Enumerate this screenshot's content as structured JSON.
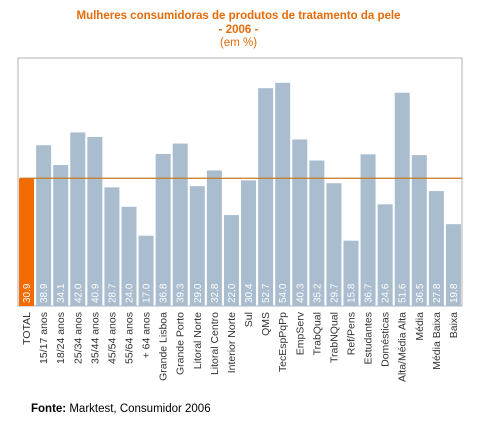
{
  "chart_data": {
    "type": "bar",
    "title": "Mulheres consumidoras de produtos de tratamento da pele",
    "subtitle": "- 2006 -",
    "unit_label": "(em %)",
    "categories": [
      "TOTAL",
      "15/17 anos",
      "18/24 anos",
      "25/34 anos",
      "35/44 anos",
      "45/54 anos",
      "55/64 anos",
      "+ 64 anos",
      "Grande Lisboa",
      "Grande Porto",
      "Litoral Norte",
      "Litoral Centro",
      "Interior Norte",
      "Sul",
      "QMS",
      "TecEspPqPp",
      "EmpServ",
      "TrabQual",
      "TrabNQual",
      "Ref/Pens",
      "Estudantes",
      "Domésticas",
      "Alta/Média Alta",
      "Média",
      "Média Baixa",
      "Baixa"
    ],
    "values": [
      30.9,
      38.9,
      34.1,
      42.0,
      40.9,
      28.7,
      24.0,
      17.0,
      36.8,
      39.3,
      29.0,
      32.8,
      22.0,
      30.4,
      52.7,
      54.0,
      40.3,
      35.2,
      29.7,
      15.8,
      36.7,
      24.6,
      51.6,
      36.5,
      27.8,
      19.8
    ],
    "value_labels": [
      "30.9",
      "38.9",
      "34.1",
      "42.0",
      "40.9",
      "28.7",
      "24.0",
      "17.0",
      "36.8",
      "39.3",
      "29.0",
      "32.8",
      "22.0",
      "30.4",
      "52.7",
      "54.0",
      "40.3",
      "35.2",
      "29.7",
      "15.8",
      "36.7",
      "24.6",
      "51.6",
      "36.5",
      "27.8",
      "19.8"
    ],
    "ylim": [
      0,
      60
    ],
    "reference_line": 30.9,
    "highlight_index": 0,
    "grid": false,
    "legend": "none",
    "colors": {
      "bar": "#a9bdcf",
      "highlight": "#f26a00",
      "reference_line": "#c8781e",
      "frame": "#b3b3b3",
      "title": "#e46c0a",
      "value_label": "#ffffff"
    }
  },
  "source": {
    "label": "Fonte:",
    "text": "Marktest, Consumidor 2006"
  }
}
